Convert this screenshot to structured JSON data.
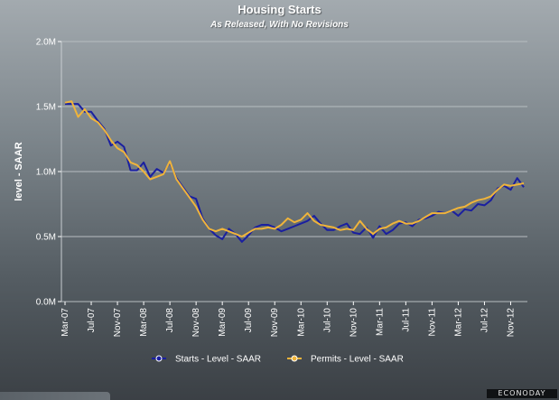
{
  "chart_data": {
    "type": "line",
    "title": "Housing Starts",
    "subtitle": "As Released, With No Revisions",
    "ylabel": "level - SAAR",
    "ylim": [
      0,
      2000000
    ],
    "yticks": [
      0,
      500000,
      1000000,
      1500000,
      2000000
    ],
    "ytick_labels": [
      "0.0M",
      "0.5M",
      "1.0M",
      "1.5M",
      "2.0M"
    ],
    "xtick_labels": [
      "Mar-07",
      "Jul-07",
      "Nov-07",
      "Mar-08",
      "Jul-08",
      "Nov-08",
      "Mar-09",
      "Jul-09",
      "Nov-09",
      "Mar-10",
      "Jul-10",
      "Nov-10",
      "Mar-11",
      "Jul-11",
      "Nov-11",
      "Mar-12",
      "Jul-12",
      "Nov-12"
    ],
    "x": [
      "Mar-07",
      "Apr-07",
      "May-07",
      "Jun-07",
      "Jul-07",
      "Aug-07",
      "Sep-07",
      "Oct-07",
      "Nov-07",
      "Dec-07",
      "Jan-08",
      "Feb-08",
      "Mar-08",
      "Apr-08",
      "May-08",
      "Jun-08",
      "Jul-08",
      "Aug-08",
      "Sep-08",
      "Oct-08",
      "Nov-08",
      "Dec-08",
      "Jan-09",
      "Feb-09",
      "Mar-09",
      "Apr-09",
      "May-09",
      "Jun-09",
      "Jul-09",
      "Aug-09",
      "Sep-09",
      "Oct-09",
      "Nov-09",
      "Dec-09",
      "Jan-10",
      "Feb-10",
      "Mar-10",
      "Apr-10",
      "May-10",
      "Jun-10",
      "Jul-10",
      "Aug-10",
      "Sep-10",
      "Oct-10",
      "Nov-10",
      "Dec-10",
      "Jan-11",
      "Feb-11",
      "Mar-11",
      "Apr-11",
      "May-11",
      "Jun-11",
      "Jul-11",
      "Aug-11",
      "Sep-11",
      "Oct-11",
      "Nov-11",
      "Dec-11",
      "Jan-12",
      "Feb-12",
      "Mar-12",
      "Apr-12",
      "May-12",
      "Jun-12",
      "Jul-12",
      "Aug-12",
      "Sep-12",
      "Oct-12",
      "Nov-12",
      "Dec-12",
      "Jan-13"
    ],
    "grid": true,
    "legend_position": "bottom",
    "series": [
      {
        "name": "Starts - Level - SAAR",
        "color": "#1a1fa0",
        "values": [
          1520000,
          1520000,
          1520000,
          1460000,
          1460000,
          1390000,
          1330000,
          1200000,
          1230000,
          1190000,
          1010000,
          1010000,
          1070000,
          960000,
          1020000,
          990000,
          1070000,
          950000,
          880000,
          810000,
          790000,
          640000,
          560000,
          510000,
          480000,
          560000,
          520000,
          460000,
          510000,
          570000,
          590000,
          590000,
          570000,
          540000,
          560000,
          580000,
          600000,
          620000,
          660000,
          600000,
          550000,
          550000,
          580000,
          600000,
          530000,
          520000,
          570000,
          490000,
          580000,
          520000,
          550000,
          600000,
          610000,
          580000,
          630000,
          640000,
          660000,
          690000,
          680000,
          700000,
          660000,
          710000,
          700000,
          750000,
          740000,
          780000,
          870000,
          890000,
          860000,
          950000,
          880000
        ]
      },
      {
        "name": "Permits - Level - SAAR",
        "color": "#f0b43a",
        "values": [
          1530000,
          1540000,
          1420000,
          1480000,
          1410000,
          1380000,
          1320000,
          1240000,
          1180000,
          1150000,
          1070000,
          1050000,
          1000000,
          940000,
          960000,
          980000,
          1080000,
          940000,
          870000,
          800000,
          730000,
          630000,
          560000,
          540000,
          560000,
          540000,
          520000,
          500000,
          530000,
          560000,
          560000,
          570000,
          560000,
          590000,
          640000,
          610000,
          630000,
          680000,
          620000,
          590000,
          580000,
          570000,
          550000,
          560000,
          550000,
          620000,
          560000,
          520000,
          560000,
          570000,
          600000,
          620000,
          600000,
          600000,
          620000,
          650000,
          680000,
          680000,
          680000,
          700000,
          720000,
          730000,
          760000,
          780000,
          790000,
          810000,
          860000,
          900000,
          890000,
          900000,
          910000
        ]
      }
    ]
  },
  "brand": {
    "logo_text": "ECONODAY"
  }
}
